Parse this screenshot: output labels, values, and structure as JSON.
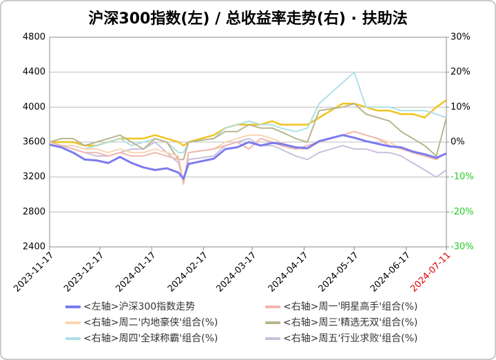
{
  "chart_data": {
    "type": "line",
    "title": "沪深300指数(左)  /  总收益率走势(右) · 扶助法",
    "x": [
      "2023-11-17",
      "2023-11-24",
      "2023-12-01",
      "2023-12-08",
      "2023-12-15",
      "2023-12-22",
      "2023-12-29",
      "2024-01-05",
      "2024-01-12",
      "2024-01-19",
      "2024-01-26",
      "2024-02-02",
      "2024-02-05",
      "2024-02-08",
      "2024-02-23",
      "2024-03-01",
      "2024-03-08",
      "2024-03-15",
      "2024-03-22",
      "2024-03-29",
      "2024-04-03",
      "2024-04-12",
      "2024-04-19",
      "2024-04-26",
      "2024-05-10",
      "2024-05-17",
      "2024-05-24",
      "2024-05-31",
      "2024-06-07",
      "2024-06-14",
      "2024-06-21",
      "2024-06-28",
      "2024-07-05",
      "2024-07-11"
    ],
    "xlim": [
      "2023-11-17",
      "2024-07-11"
    ],
    "xticks": [
      "2023-11-17",
      "2023-12-17",
      "2024-01-17",
      "2024-02-17",
      "2024-03-17",
      "2024-04-17",
      "2024-05-17",
      "2024-06-17",
      "2024-07-11"
    ],
    "xtick_colors": [
      "#000000",
      "#000000",
      "#000000",
      "#000000",
      "#000000",
      "#000000",
      "#000000",
      "#000000",
      "#e00000"
    ],
    "ylim": [
      2400,
      4800
    ],
    "yticks": [
      2400,
      2800,
      3200,
      3600,
      4000,
      4400,
      4800
    ],
    "y2lim": [
      -30,
      30
    ],
    "y2ticks": [
      {
        "value": -30,
        "label": "-30%"
      },
      {
        "value": -20,
        "label": "-20%"
      },
      {
        "value": -10,
        "label": "-10%"
      },
      {
        "value": 0,
        "label": "0%"
      },
      {
        "value": 10,
        "label": "10%"
      },
      {
        "value": 20,
        "label": "20%"
      },
      {
        "value": 30,
        "label": "30%"
      }
    ],
    "y2_negative_color": "#22cc22",
    "grid": true,
    "series": [
      {
        "name": "<左轴>沪深300指数走势",
        "color": "#7b7bef",
        "width": 3,
        "values": [
          3570,
          3540,
          3480,
          3400,
          3390,
          3360,
          3430,
          3360,
          3310,
          3280,
          3300,
          3250,
          3180,
          3350,
          3410,
          3520,
          3540,
          3600,
          3560,
          3590,
          3580,
          3540,
          3530,
          3610,
          3680,
          3650,
          3610,
          3580,
          3550,
          3540,
          3490,
          3460,
          3420,
          3470
        ]
      },
      {
        "name": "<右轴>周一'明星高手'组合(%)",
        "color": "#efb7ae",
        "width": 2,
        "axis": "y2",
        "values": [
          0,
          -1,
          -2,
          -3,
          -3,
          -4,
          -3,
          -4,
          -4,
          -3,
          -4,
          -5,
          -12,
          -3,
          -2,
          -1,
          0,
          -2,
          1,
          0,
          -1,
          -2,
          -1,
          0,
          2,
          3,
          2,
          1,
          -1,
          -2,
          -3,
          -4,
          -5,
          -3
        ]
      },
      {
        "name": "<右轴>周二'内地豪侠'组合(%)",
        "color": "#fbd5b1",
        "width": 2,
        "axis": "y2",
        "values": [
          0,
          -1,
          -1,
          -2,
          -2,
          -3,
          -2,
          -3,
          -3,
          -2,
          -3,
          -4,
          -12,
          -3,
          -2,
          0,
          1,
          2,
          2,
          1,
          0,
          -2,
          -2,
          0,
          2,
          3,
          2,
          1,
          0,
          -2,
          -3,
          -4,
          -5,
          -3
        ]
      },
      {
        "name": "<右轴>周三'精选无双'组合(%)",
        "color": "#b8b58e",
        "width": 2,
        "axis": "y2",
        "values": [
          0,
          1,
          1,
          -1,
          0,
          1,
          2,
          0,
          -2,
          1,
          0,
          -5,
          -5,
          0,
          1,
          3,
          3,
          5,
          4,
          4,
          3,
          1,
          0,
          9,
          10,
          11,
          8,
          7,
          6,
          3,
          1,
          -1,
          -4,
          7
        ]
      },
      {
        "name": "<右轴>周四'全球称霸'组合(%)",
        "color": "#aee0e6",
        "width": 2,
        "axis": "y2",
        "values": [
          0,
          -1,
          -1,
          -2,
          -1,
          0,
          1,
          -1,
          0,
          1,
          0,
          -3,
          -3,
          0,
          1,
          4,
          5,
          6,
          5,
          5,
          4,
          3,
          4,
          11,
          17,
          20,
          10,
          10,
          10,
          9,
          9,
          9,
          8,
          7
        ]
      },
      {
        "name": "<右轴>周五'行业求败'组合(%)",
        "color": "#c9bfdc",
        "width": 2,
        "axis": "y2",
        "values": [
          0,
          -1,
          -2,
          -3,
          -4,
          -4,
          -3,
          -2,
          -2,
          0,
          -3,
          -6,
          -11,
          -5,
          -4,
          -1,
          0,
          1,
          -1,
          -1,
          -2,
          -4,
          -5,
          -3,
          -1,
          -2,
          -2,
          -3,
          -3,
          -4,
          -6,
          -8,
          -10,
          -8
        ]
      },
      {
        "color": "#f0c41e",
        "width": 2.5,
        "axis": "y2",
        "values": [
          0,
          0,
          0,
          -1,
          -1,
          0,
          1,
          1,
          1,
          2,
          1,
          0,
          -1,
          0,
          2,
          4,
          5,
          5,
          5,
          6,
          5,
          5,
          5,
          7,
          11,
          11,
          10,
          9,
          9,
          8,
          8,
          7,
          10,
          12
        ]
      }
    ]
  }
}
